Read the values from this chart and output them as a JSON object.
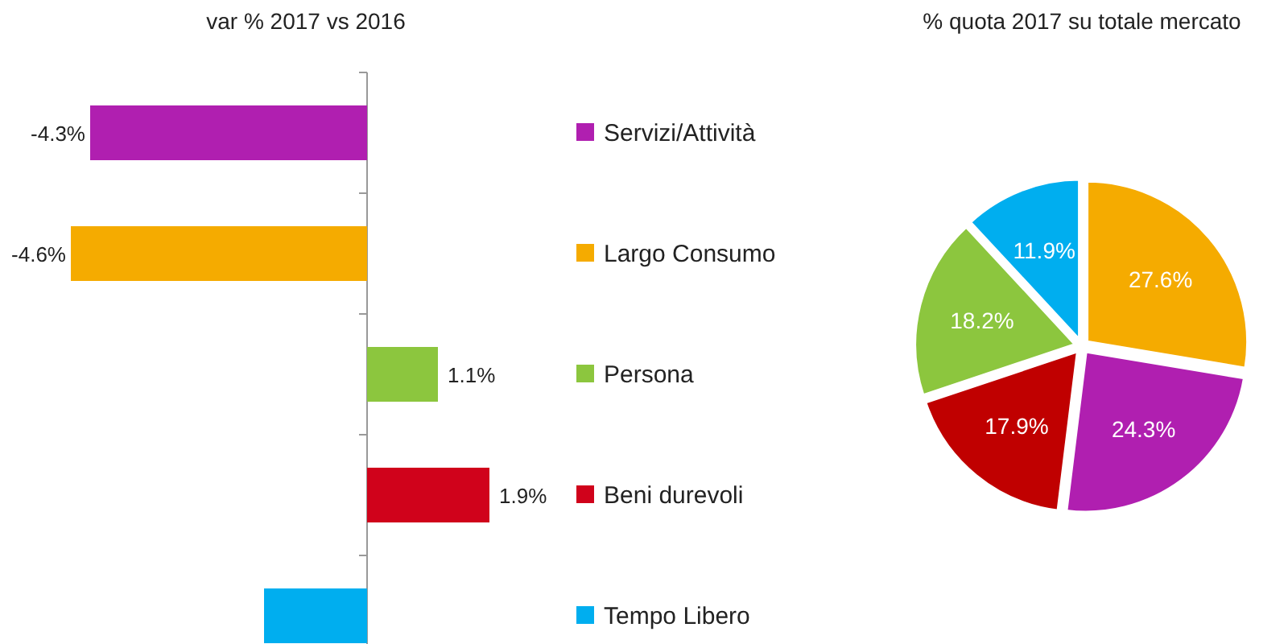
{
  "chart_data": [
    {
      "type": "bar",
      "orientation": "horizontal",
      "title": "var % 2017 vs 2016",
      "categories": [
        "Servizi/Attività",
        "Largo Consumo",
        "Persona",
        "Beni durevoli",
        "Tempo Libero"
      ],
      "values": [
        -4.3,
        -4.6,
        1.1,
        1.9,
        -1.6
      ],
      "colors": [
        "#b01fb0",
        "#f5ab00",
        "#8cc63e",
        "#d0021b",
        "#00aeef"
      ],
      "value_labels": [
        "-4.3%",
        "-4.6%",
        "1.1%",
        "1.9%",
        null
      ]
    },
    {
      "type": "pie",
      "title": "% quota 2017 su totale mercato",
      "categories": [
        null,
        null,
        null,
        null,
        null
      ],
      "values": [
        27.6,
        24.3,
        17.9,
        18.2,
        11.9
      ],
      "colors": [
        "#f5ab00",
        "#b01fb0",
        "#c00000",
        "#8cc63e",
        "#00aeef"
      ],
      "value_labels": [
        "27.6%",
        "24.3%",
        "17.9%",
        "18.2%",
        "11.9%"
      ]
    }
  ]
}
